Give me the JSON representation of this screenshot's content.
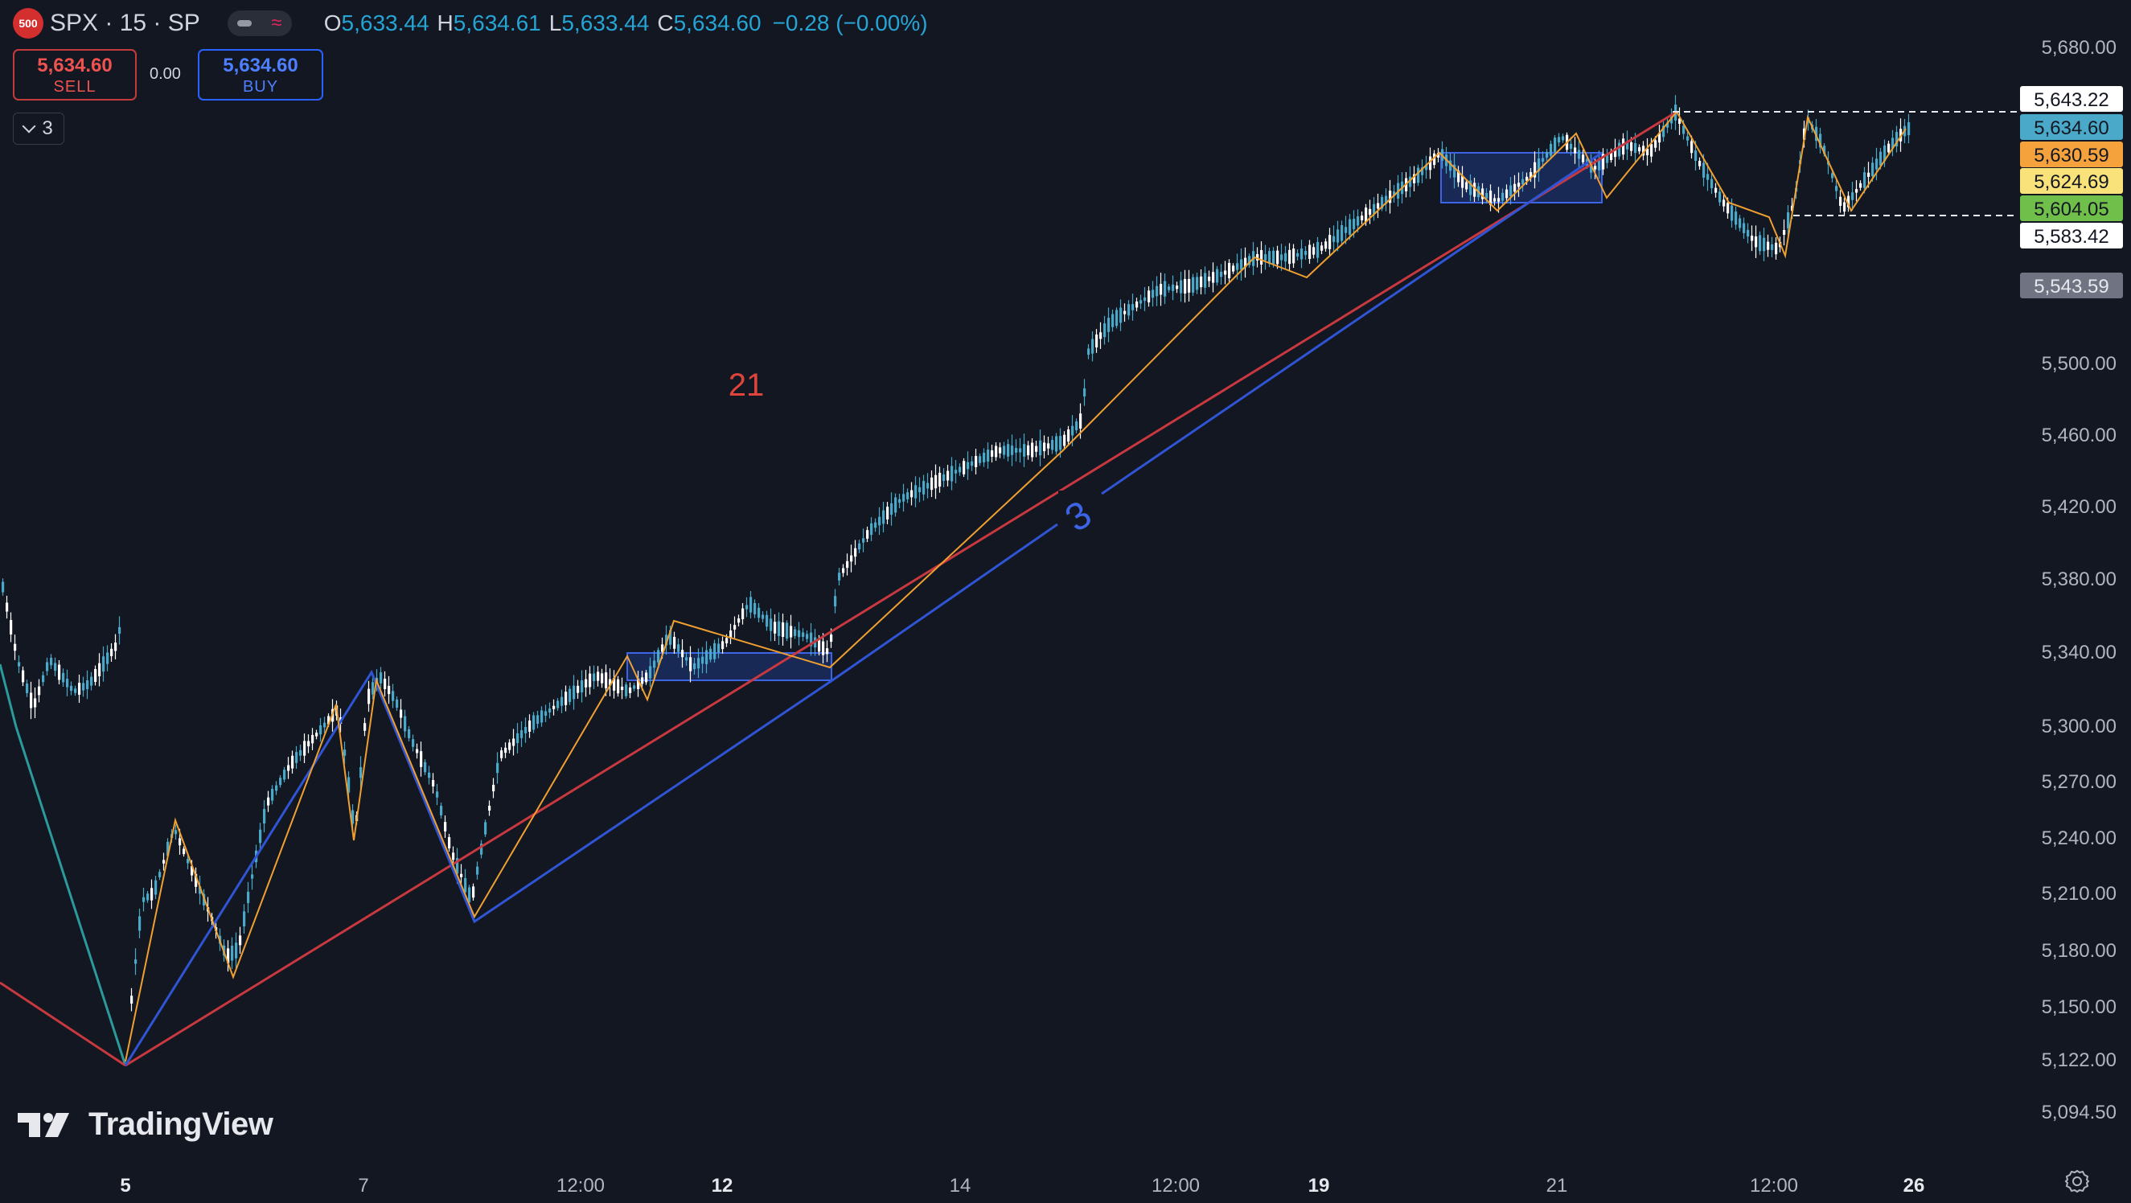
{
  "header": {
    "symbol_badge": "500",
    "symbol": "SPX · 15 · SP",
    "ohlc": {
      "open_label": "O",
      "open": "5,633.44",
      "high_label": "H",
      "high": "5,634.61",
      "low_label": "L",
      "low": "5,633.44",
      "close_label": "C",
      "close": "5,634.60",
      "change": "−0.28 (−0.00%)"
    }
  },
  "trade": {
    "sell_price": "5,634.60",
    "sell_label": "SELL",
    "spread": "0.00",
    "buy_price": "5,634.60",
    "buy_label": "BUY"
  },
  "indicators": {
    "collapse_count": "3"
  },
  "branding": {
    "logo_text": "TradingView"
  },
  "chart_data": {
    "type": "candlestick",
    "y_axis_ticks": [
      "5,680.00",
      "5,500.00",
      "5,460.00",
      "5,420.00",
      "5,380.00",
      "5,340.00",
      "5,300.00",
      "5,270.00",
      "5,240.00",
      "5,210.00",
      "5,180.00",
      "5,150.00",
      "5,122.00",
      "5,094.50"
    ],
    "y_tick_values": [
      5680,
      5500,
      5460,
      5420,
      5380,
      5340,
      5300,
      5270,
      5240,
      5210,
      5180,
      5150,
      5122,
      5094.5
    ],
    "x_axis_ticks": [
      {
        "label": "5",
        "bold": true
      },
      {
        "label": "7",
        "bold": false
      },
      {
        "label": "12:00",
        "bold": false
      },
      {
        "label": "12",
        "bold": true
      },
      {
        "label": "14",
        "bold": false
      },
      {
        "label": "12:00",
        "bold": false
      },
      {
        "label": "19",
        "bold": true
      },
      {
        "label": "21",
        "bold": false
      },
      {
        "label": "12:00",
        "bold": false
      },
      {
        "label": "26",
        "bold": true
      }
    ],
    "price_labels": [
      {
        "text": "5,643.22",
        "value": 5643.22,
        "bg": "#ffffff",
        "fg": "#131722"
      },
      {
        "text": "5,634.60",
        "value": 5634.6,
        "bg": "#4aa8c8",
        "fg": "#131722"
      },
      {
        "text": "5,630.59",
        "value": 5630.59,
        "bg": "#f6a23c",
        "fg": "#131722"
      },
      {
        "text": "5,624.69",
        "value": 5624.69,
        "bg": "#f9e27a",
        "fg": "#131722"
      },
      {
        "text": "5,604.05",
        "value": 5604.05,
        "bg": "#6fbf4a",
        "fg": "#131722"
      },
      {
        "text": "5,583.42",
        "value": 5583.42,
        "bg": "#ffffff",
        "fg": "#131722"
      },
      {
        "text": "5,543.59",
        "value": 5543.59,
        "bg": "#707482",
        "fg": "#e6e8ee"
      }
    ],
    "annotations": [
      {
        "text": "21",
        "color": "#e0453c"
      },
      {
        "text": "3",
        "color": "#3d64e6"
      }
    ],
    "colors": {
      "background": "#131722",
      "candle_up": "#4aa8c8",
      "candle_down": "#ffffff",
      "trend_red": "#c8383f",
      "trend_blue": "#2f55d4",
      "zigzag_orange": "#f0a030",
      "teal": "#2b9a9a"
    }
  }
}
